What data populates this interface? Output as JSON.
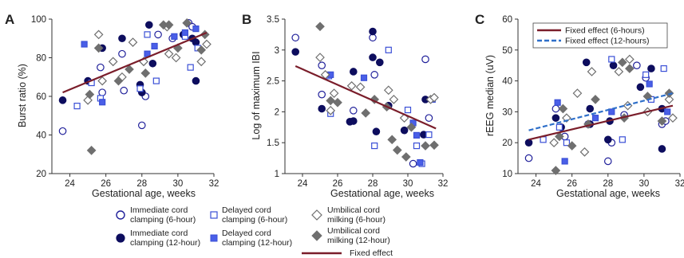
{
  "colors": {
    "open_blue": "#1f1f9a",
    "navy": "#0d0d5e",
    "square_blue": "#3a4fd6",
    "square_fill": "#4a5fe8",
    "diamond_gray": "#6f6f6f",
    "fixed_red": "#7a1d2a",
    "dashed_blue": "#2e6fc9"
  },
  "legend": {
    "imm6": "Immediate cord clamping (6-hour)",
    "imm12": "Immediate cord clamping (12-hour)",
    "del6": "Delayed cord clamping (6-hour)",
    "del12": "Delayed cord clamping (12-hour)",
    "umb6": "Umbilical cord milking (6-hour)",
    "umb12": "Umbilical cord milking (12-hour)",
    "fixed": "Fixed effect"
  },
  "chart_data": [
    {
      "panel": "A",
      "type": "scatter",
      "xlabel": "Gestational age, weeks",
      "ylabel": "Burst ratio (%)",
      "xlim": [
        23,
        32
      ],
      "ylim": [
        20,
        100
      ],
      "xticks": [
        24,
        26,
        28,
        30,
        32
      ],
      "yticks": [
        20,
        40,
        60,
        80,
        100
      ],
      "series": [
        {
          "name": "Immediate cord clamping (6-hour)",
          "marker": "circle-open",
          "points": [
            [
              23.6,
              42
            ],
            [
              25.7,
              75
            ],
            [
              25.8,
              62
            ],
            [
              26.9,
              82
            ],
            [
              27,
              63
            ],
            [
              28,
              45
            ],
            [
              28.2,
              60
            ],
            [
              28.9,
              92
            ],
            [
              29.7,
              90
            ],
            [
              30.6,
              98
            ],
            [
              30.8,
              96
            ]
          ]
        },
        {
          "name": "Immediate cord clamping (12-hour)",
          "marker": "circle-filled",
          "points": [
            [
              23.6,
              58
            ],
            [
              25,
              68
            ],
            [
              25.8,
              85
            ],
            [
              26.9,
              90
            ],
            [
              27.9,
              66
            ],
            [
              28,
              62
            ],
            [
              28.4,
              97
            ],
            [
              28.6,
              77
            ],
            [
              30.3,
              92
            ],
            [
              30.8,
              90
            ],
            [
              31,
              68
            ],
            [
              31,
              88
            ]
          ]
        },
        {
          "name": "Delayed cord clamping (6-hour)",
          "marker": "square-open",
          "points": [
            [
              24.4,
              55
            ],
            [
              25.2,
              67
            ],
            [
              25.7,
              59
            ],
            [
              27.9,
              64
            ],
            [
              28.3,
              92
            ],
            [
              28.8,
              68
            ],
            [
              30.4,
              91
            ],
            [
              30.7,
              75
            ],
            [
              31.1,
              85
            ]
          ]
        },
        {
          "name": "Delayed cord clamping (12-hour)",
          "marker": "square-filled",
          "points": [
            [
              24.8,
              87
            ],
            [
              25.8,
              57
            ],
            [
              28.3,
              82
            ],
            [
              28.7,
              86
            ],
            [
              29.8,
              91
            ],
            [
              30.4,
              93
            ],
            [
              31,
              95
            ]
          ]
        },
        {
          "name": "Umbilical cord milking (6-hour)",
          "marker": "diamond-open",
          "points": [
            [
              25,
              58
            ],
            [
              25.6,
              92
            ],
            [
              25.8,
              68
            ],
            [
              26.4,
              78
            ],
            [
              26.9,
              70
            ],
            [
              27.5,
              88
            ],
            [
              28.1,
              78
            ],
            [
              29.4,
              96
            ],
            [
              29.5,
              82
            ],
            [
              29.9,
              80
            ],
            [
              31.3,
              78
            ],
            [
              31.6,
              87
            ]
          ]
        },
        {
          "name": "Umbilical cord milking (12-hour)",
          "marker": "diamond-filled",
          "points": [
            [
              25.2,
              32
            ],
            [
              25.1,
              61
            ],
            [
              25.6,
              85
            ],
            [
              26.7,
              68
            ],
            [
              27.3,
              74
            ],
            [
              28.2,
              72
            ],
            [
              29.2,
              97
            ],
            [
              29.5,
              97
            ],
            [
              30,
              85
            ],
            [
              30.5,
              98
            ],
            [
              31.3,
              84
            ],
            [
              31.5,
              92
            ]
          ]
        }
      ],
      "fixed_effect": [
        [
          23.6,
          62
        ],
        [
          31.6,
          93
        ]
      ]
    },
    {
      "panel": "B",
      "type": "scatter",
      "xlabel": "Gestational age, weeks",
      "ylabel": "Log of maximum IBI",
      "xlim": [
        23,
        32
      ],
      "ylim": [
        1,
        3.5
      ],
      "xticks": [
        24,
        26,
        28,
        30,
        32
      ],
      "yticks": [
        1,
        1.5,
        2,
        2.5,
        3,
        3.5
      ],
      "series": [
        {
          "name": "Immediate cord clamping (6-hour)",
          "marker": "circle-open",
          "points": [
            [
              23.6,
              3.2
            ],
            [
              25.1,
              2.75
            ],
            [
              25.1,
              2.28
            ],
            [
              26.9,
              2.02
            ],
            [
              28,
              3.2
            ],
            [
              28.1,
              2.6
            ],
            [
              30.3,
              1.16
            ],
            [
              31,
              2.85
            ],
            [
              31.2,
              1.9
            ]
          ]
        },
        {
          "name": "Immediate cord clamping (12-hour)",
          "marker": "circle-filled",
          "points": [
            [
              23.6,
              2.97
            ],
            [
              25.1,
              2.05
            ],
            [
              26.7,
              1.84
            ],
            [
              26.9,
              1.85
            ],
            [
              26.9,
              2.65
            ],
            [
              28,
              3.3
            ],
            [
              28,
              2.88
            ],
            [
              28.2,
              1.68
            ],
            [
              28.4,
              2.8
            ],
            [
              28.9,
              2.1
            ],
            [
              29.8,
              1.7
            ],
            [
              30.9,
              1.63
            ],
            [
              31,
              2.2
            ]
          ]
        },
        {
          "name": "Delayed cord clamping (6-hour)",
          "marker": "square-open",
          "points": [
            [
              25.5,
              2.58
            ],
            [
              25.6,
              1.97
            ],
            [
              28.1,
              1.45
            ],
            [
              28.9,
              3
            ],
            [
              30,
              2.03
            ],
            [
              30.5,
              1.45
            ],
            [
              30.8,
              1.16
            ],
            [
              31.2,
              1.63
            ]
          ]
        },
        {
          "name": "Delayed cord clamping (12-hour)",
          "marker": "square-filled",
          "points": [
            [
              25.6,
              2.6
            ],
            [
              27.5,
              2.55
            ],
            [
              30.3,
              1.82
            ],
            [
              30.5,
              1.62
            ],
            [
              30.7,
              1.18
            ],
            [
              31.4,
              2.2
            ]
          ]
        },
        {
          "name": "Umbilical cord milking (6-hour)",
          "marker": "diamond-open",
          "points": [
            [
              25,
              2.88
            ],
            [
              25.3,
              2.6
            ],
            [
              25.6,
              2.02
            ],
            [
              25.8,
              2.3
            ],
            [
              26.8,
              2.42
            ],
            [
              27.3,
              2.4
            ],
            [
              28.9,
              2.35
            ],
            [
              29.2,
              2.2
            ],
            [
              29.8,
              1.9
            ],
            [
              31.3,
              2.2
            ],
            [
              31.5,
              2.23
            ]
          ]
        },
        {
          "name": "Umbilical cord milking (12-hour)",
          "marker": "diamond-filled",
          "points": [
            [
              25,
              3.38
            ],
            [
              25.6,
              2.18
            ],
            [
              26,
              2.15
            ],
            [
              27.6,
              1.98
            ],
            [
              28.1,
              2.2
            ],
            [
              28.8,
              2.08
            ],
            [
              29.1,
              1.55
            ],
            [
              29.4,
              1.38
            ],
            [
              29.9,
              1.27
            ],
            [
              30.2,
              1.75
            ],
            [
              31,
              1.45
            ],
            [
              31.5,
              1.46
            ]
          ]
        }
      ],
      "fixed_effect": [
        [
          23.6,
          2.74
        ],
        [
          31.6,
          1.73
        ]
      ]
    },
    {
      "panel": "C",
      "type": "scatter",
      "xlabel": "Gestational age, weeks",
      "ylabel": "rEEG median (uV)",
      "xlim": [
        23,
        32
      ],
      "ylim": [
        10,
        60
      ],
      "xticks": [
        24,
        26,
        28,
        30,
        32
      ],
      "yticks": [
        10,
        20,
        30,
        40,
        50,
        60
      ],
      "legend_entries": [
        "Fixed effect (6-hours)",
        "Fixed effect (12-hours)"
      ],
      "series": [
        {
          "name": "Immediate cord clamping (6-hour)",
          "marker": "circle-open",
          "points": [
            [
              23.6,
              15
            ],
            [
              25.1,
              31
            ],
            [
              25.6,
              22
            ],
            [
              26.9,
              26
            ],
            [
              28,
              14
            ],
            [
              28.2,
              20
            ],
            [
              28.9,
              29
            ],
            [
              29.6,
              45
            ],
            [
              30.1,
              41
            ],
            [
              31,
              26
            ],
            [
              31.2,
              27
            ]
          ]
        },
        {
          "name": "Immediate cord clamping (12-hour)",
          "marker": "circle-filled",
          "points": [
            [
              23.6,
              20
            ],
            [
              25.1,
              28
            ],
            [
              25.4,
              25
            ],
            [
              26.8,
              46
            ],
            [
              27,
              26
            ],
            [
              27,
              31
            ],
            [
              28,
              21
            ],
            [
              28.1,
              27
            ],
            [
              28.3,
              45
            ],
            [
              29.8,
              38
            ],
            [
              30.4,
              44
            ],
            [
              31,
              18
            ],
            [
              31,
              31
            ]
          ]
        },
        {
          "name": "Delayed cord clamping (6-hour)",
          "marker": "square-open",
          "points": [
            [
              24.4,
              21
            ],
            [
              25.3,
              25
            ],
            [
              25.7,
              20
            ],
            [
              28.2,
              47
            ],
            [
              28.8,
              21
            ],
            [
              30.1,
              42
            ],
            [
              30.4,
              34
            ],
            [
              31.1,
              44
            ]
          ]
        },
        {
          "name": "Delayed cord clamping (12-hour)",
          "marker": "square-filled",
          "points": [
            [
              25.2,
              33
            ],
            [
              25.6,
              14
            ],
            [
              27.3,
              28
            ],
            [
              28.2,
              30
            ],
            [
              30.3,
              39
            ],
            [
              31.3,
              30
            ]
          ]
        },
        {
          "name": "Umbilical cord milking (6-hour)",
          "marker": "diamond-open",
          "points": [
            [
              25,
              20
            ],
            [
              25.7,
              28
            ],
            [
              26.3,
              36
            ],
            [
              26.7,
              17
            ],
            [
              27.1,
              43
            ],
            [
              28.6,
              43
            ],
            [
              29.1,
              32
            ],
            [
              29.2,
              47
            ],
            [
              30.2,
              30
            ],
            [
              31.4,
              34
            ],
            [
              31.6,
              28
            ]
          ]
        },
        {
          "name": "Umbilical cord milking (12-hour)",
          "marker": "diamond-filled",
          "points": [
            [
              25.1,
              11
            ],
            [
              25.3,
              22
            ],
            [
              25.5,
              31
            ],
            [
              26,
              19
            ],
            [
              26.9,
              26
            ],
            [
              27.3,
              34
            ],
            [
              28.8,
              46
            ],
            [
              28.9,
              28
            ],
            [
              29.2,
              44
            ],
            [
              30.2,
              35
            ],
            [
              31,
              27
            ],
            [
              31.4,
              36
            ]
          ]
        }
      ],
      "fixed_effect": [
        [
          23.6,
          21
        ],
        [
          31.6,
          32
        ]
      ],
      "fixed_effect_12h": [
        [
          23.6,
          24
        ],
        [
          31.6,
          36
        ]
      ]
    }
  ]
}
